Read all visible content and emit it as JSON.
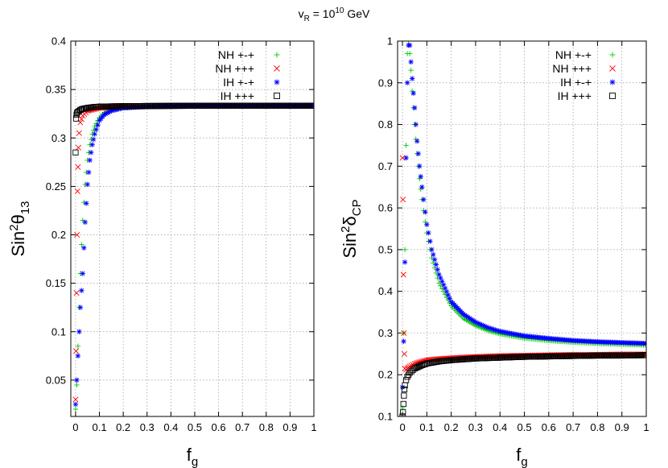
{
  "figure_title": {
    "base": "v",
    "sub": "R",
    "mid": " = 10",
    "sup": "10",
    "tail": " GeV"
  },
  "chart_data": [
    {
      "type": "scatter",
      "xlabel": {
        "base": "f",
        "sub": "g"
      },
      "ylabel": {
        "base": "Sin",
        "sup": "2",
        "rest": "θ",
        "sub": "13"
      },
      "xlim": [
        -0.02,
        1.0
      ],
      "ylim": [
        0.0125,
        0.4
      ],
      "xticks": [
        0,
        0.1,
        0.2,
        0.3,
        0.4,
        0.5,
        0.6,
        0.7,
        0.8,
        0.9,
        1
      ],
      "xtick_labels": [
        "0",
        "0.1",
        "0.2",
        "0.3",
        "0.4",
        "0.5",
        "0.6",
        "0.7",
        "0.8",
        "0.9",
        "1"
      ],
      "yticks": [
        0.05,
        0.1,
        0.15,
        0.2,
        0.25,
        0.3,
        0.35,
        0.4
      ],
      "ytick_labels": [
        "0.05",
        "0.1",
        "0.15",
        "0.2",
        "0.25",
        "0.3",
        "0.35",
        "0.4"
      ],
      "grid": true,
      "legend_position": "top-right",
      "series": [
        {
          "name": "NH +-+",
          "marker": "plus",
          "color": "#00cc00",
          "x": [
            0.0,
            0.005,
            0.01,
            0.015,
            0.02,
            0.025,
            0.03,
            0.04,
            0.05,
            0.06,
            0.07,
            0.08,
            0.1,
            0.12,
            0.15,
            0.2,
            0.3,
            0.4,
            0.5,
            0.6,
            0.7,
            0.8,
            0.9,
            1.0
          ],
          "y": [
            0.02,
            0.045,
            0.085,
            0.125,
            0.16,
            0.19,
            0.215,
            0.252,
            0.277,
            0.293,
            0.304,
            0.312,
            0.321,
            0.326,
            0.329,
            0.331,
            0.3325,
            0.333,
            0.3333,
            0.3333,
            0.3333,
            0.3333,
            0.3333,
            0.3333
          ]
        },
        {
          "name": "NH +++",
          "marker": "x",
          "color": "#ff0000",
          "x": [
            0.0,
            0.002,
            0.004,
            0.006,
            0.008,
            0.01,
            0.012,
            0.015,
            0.02,
            0.03,
            0.05,
            0.1,
            0.2,
            0.4,
            0.6,
            0.8,
            1.0
          ],
          "y": [
            0.03,
            0.08,
            0.14,
            0.2,
            0.245,
            0.27,
            0.29,
            0.305,
            0.316,
            0.323,
            0.328,
            0.331,
            0.332,
            0.333,
            0.3333,
            0.3333,
            0.3333
          ]
        },
        {
          "name": "IH +-+",
          "marker": "star",
          "color": "#0000ff",
          "x": [
            0.0,
            0.005,
            0.01,
            0.015,
            0.02,
            0.03,
            0.04,
            0.05,
            0.06,
            0.07,
            0.08,
            0.1,
            0.12,
            0.15,
            0.2,
            0.3,
            0.4,
            0.5,
            0.6,
            0.7,
            0.8,
            0.9,
            1.0
          ],
          "y": [
            0.025,
            0.05,
            0.075,
            0.1,
            0.125,
            0.16,
            0.213,
            0.252,
            0.277,
            0.293,
            0.304,
            0.318,
            0.324,
            0.328,
            0.331,
            0.3325,
            0.333,
            0.3333,
            0.3333,
            0.3333,
            0.3333,
            0.3333,
            0.3333
          ]
        },
        {
          "name": "IH +++",
          "marker": "square",
          "color": "#000000",
          "x": [
            0.0,
            0.002,
            0.004,
            0.006,
            0.01,
            0.015,
            0.02,
            0.03,
            0.05,
            0.08,
            0.1,
            0.15,
            0.2,
            0.3,
            0.4,
            0.5,
            0.6,
            0.7,
            0.8,
            0.9,
            1.0
          ],
          "y": [
            0.285,
            0.32,
            0.324,
            0.326,
            0.327,
            0.328,
            0.329,
            0.33,
            0.331,
            0.332,
            0.3323,
            0.3326,
            0.3328,
            0.333,
            0.3331,
            0.3332,
            0.3333,
            0.3333,
            0.3333,
            0.3333,
            0.3333
          ]
        }
      ]
    },
    {
      "type": "scatter",
      "xlabel": {
        "base": "f",
        "sub": "g"
      },
      "ylabel": {
        "base": "Sin",
        "sup": "2",
        "rest": "δ",
        "sub": "CP"
      },
      "xlim": [
        -0.02,
        1.0
      ],
      "ylim": [
        0.1,
        1.0
      ],
      "xticks": [
        0,
        0.1,
        0.2,
        0.3,
        0.4,
        0.5,
        0.6,
        0.7,
        0.8,
        0.9,
        1
      ],
      "xtick_labels": [
        "0",
        "0.1",
        "0.2",
        "0.3",
        "0.4",
        "0.5",
        "0.6",
        "0.7",
        "0.8",
        "0.9",
        "1"
      ],
      "yticks": [
        0.1,
        0.2,
        0.3,
        0.4,
        0.5,
        0.6,
        0.7,
        0.8,
        0.9,
        1
      ],
      "ytick_labels": [
        "0.1",
        "0.2",
        "0.3",
        "0.4",
        "0.5",
        "0.6",
        "0.7",
        "0.8",
        "0.9",
        "1"
      ],
      "grid": true,
      "legend_position": "top-right",
      "series": [
        {
          "name": "NH +-+",
          "marker": "plus",
          "color": "#00cc00",
          "x": [
            0.0,
            0.005,
            0.01,
            0.015,
            0.02,
            0.025,
            0.03,
            0.035,
            0.04,
            0.05,
            0.06,
            0.07,
            0.08,
            0.1,
            0.12,
            0.15,
            0.2,
            0.25,
            0.3,
            0.35,
            0.4,
            0.5,
            0.6,
            0.7,
            0.8,
            0.9,
            1.0
          ],
          "y": [
            0.12,
            0.3,
            0.5,
            0.75,
            0.97,
            1.0,
            0.97,
            0.93,
            0.88,
            0.8,
            0.73,
            0.67,
            0.62,
            0.54,
            0.48,
            0.42,
            0.365,
            0.335,
            0.318,
            0.306,
            0.298,
            0.288,
            0.282,
            0.278,
            0.275,
            0.273,
            0.271
          ]
        },
        {
          "name": "NH +++",
          "marker": "x",
          "color": "#ff0000",
          "x": [
            0.0,
            0.002,
            0.004,
            0.006,
            0.008,
            0.01,
            0.015,
            0.02,
            0.03,
            0.05,
            0.08,
            0.1,
            0.15,
            0.2,
            0.3,
            0.4,
            0.5,
            0.6,
            0.7,
            0.8,
            0.9,
            1.0
          ],
          "y": [
            0.72,
            0.62,
            0.44,
            0.3,
            0.25,
            0.215,
            0.212,
            0.215,
            0.22,
            0.226,
            0.232,
            0.235,
            0.238,
            0.24,
            0.243,
            0.245,
            0.246,
            0.247,
            0.248,
            0.248,
            0.249,
            0.249
          ]
        },
        {
          "name": "IH +-+",
          "marker": "star",
          "color": "#0000ff",
          "x": [
            0.0,
            0.005,
            0.01,
            0.015,
            0.02,
            0.025,
            0.03,
            0.035,
            0.04,
            0.05,
            0.06,
            0.07,
            0.08,
            0.1,
            0.12,
            0.15,
            0.2,
            0.25,
            0.3,
            0.35,
            0.4,
            0.5,
            0.6,
            0.7,
            0.8,
            0.9,
            1.0
          ],
          "y": [
            0.17,
            0.28,
            0.47,
            0.72,
            0.9,
            0.99,
            0.99,
            0.95,
            0.91,
            0.84,
            0.76,
            0.7,
            0.65,
            0.56,
            0.5,
            0.44,
            0.375,
            0.345,
            0.326,
            0.313,
            0.304,
            0.293,
            0.287,
            0.282,
            0.279,
            0.277,
            0.275
          ]
        },
        {
          "name": "IH +++",
          "marker": "square",
          "color": "#000000",
          "x": [
            0.0,
            0.002,
            0.004,
            0.006,
            0.008,
            0.01,
            0.015,
            0.02,
            0.03,
            0.05,
            0.08,
            0.1,
            0.15,
            0.2,
            0.3,
            0.4,
            0.5,
            0.6,
            0.7,
            0.8,
            0.9,
            1.0
          ],
          "y": [
            0.1,
            0.11,
            0.13,
            0.15,
            0.165,
            0.175,
            0.187,
            0.195,
            0.205,
            0.215,
            0.223,
            0.227,
            0.232,
            0.235,
            0.239,
            0.241,
            0.243,
            0.244,
            0.245,
            0.246,
            0.246,
            0.247
          ]
        }
      ]
    }
  ]
}
